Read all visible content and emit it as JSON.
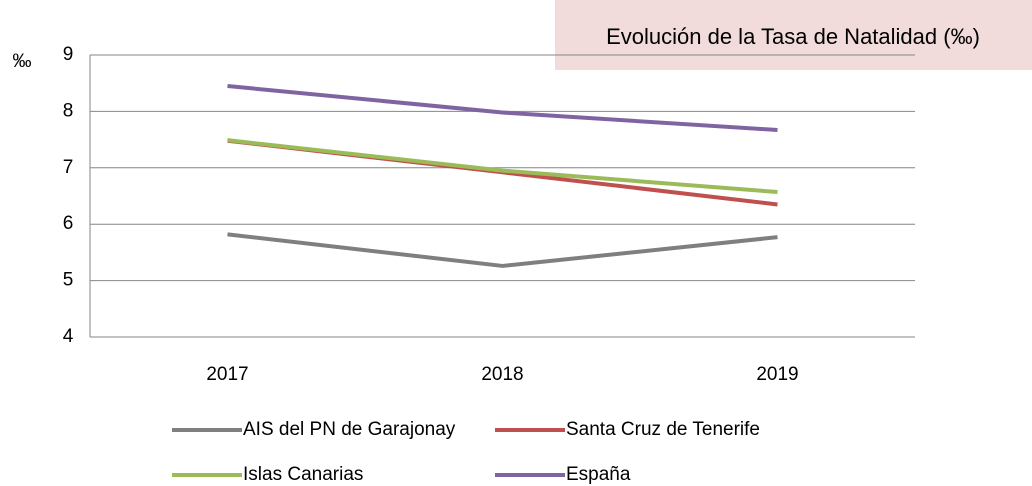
{
  "chart_data": {
    "type": "line",
    "title": "Evolución de la Tasa de Natalidad (‰)",
    "y_label": "‰",
    "categories": [
      "2017",
      "2018",
      "2019"
    ],
    "series": [
      {
        "name": "AIS del PN de Garajonay",
        "color": "#7f7f7f",
        "values": [
          5.82,
          5.26,
          5.77
        ]
      },
      {
        "name": "Santa Cruz de Tenerife",
        "color": "#c0504d",
        "values": [
          7.48,
          6.92,
          6.35
        ]
      },
      {
        "name": "Islas Canarias",
        "color": "#9bbb59",
        "values": [
          7.49,
          6.95,
          6.57
        ]
      },
      {
        "name": "España",
        "color": "#8064a2",
        "values": [
          8.45,
          7.98,
          7.67
        ]
      }
    ],
    "ylim": [
      4,
      9
    ],
    "yticks": [
      4,
      5,
      6,
      7,
      8,
      9
    ],
    "grid": true
  }
}
